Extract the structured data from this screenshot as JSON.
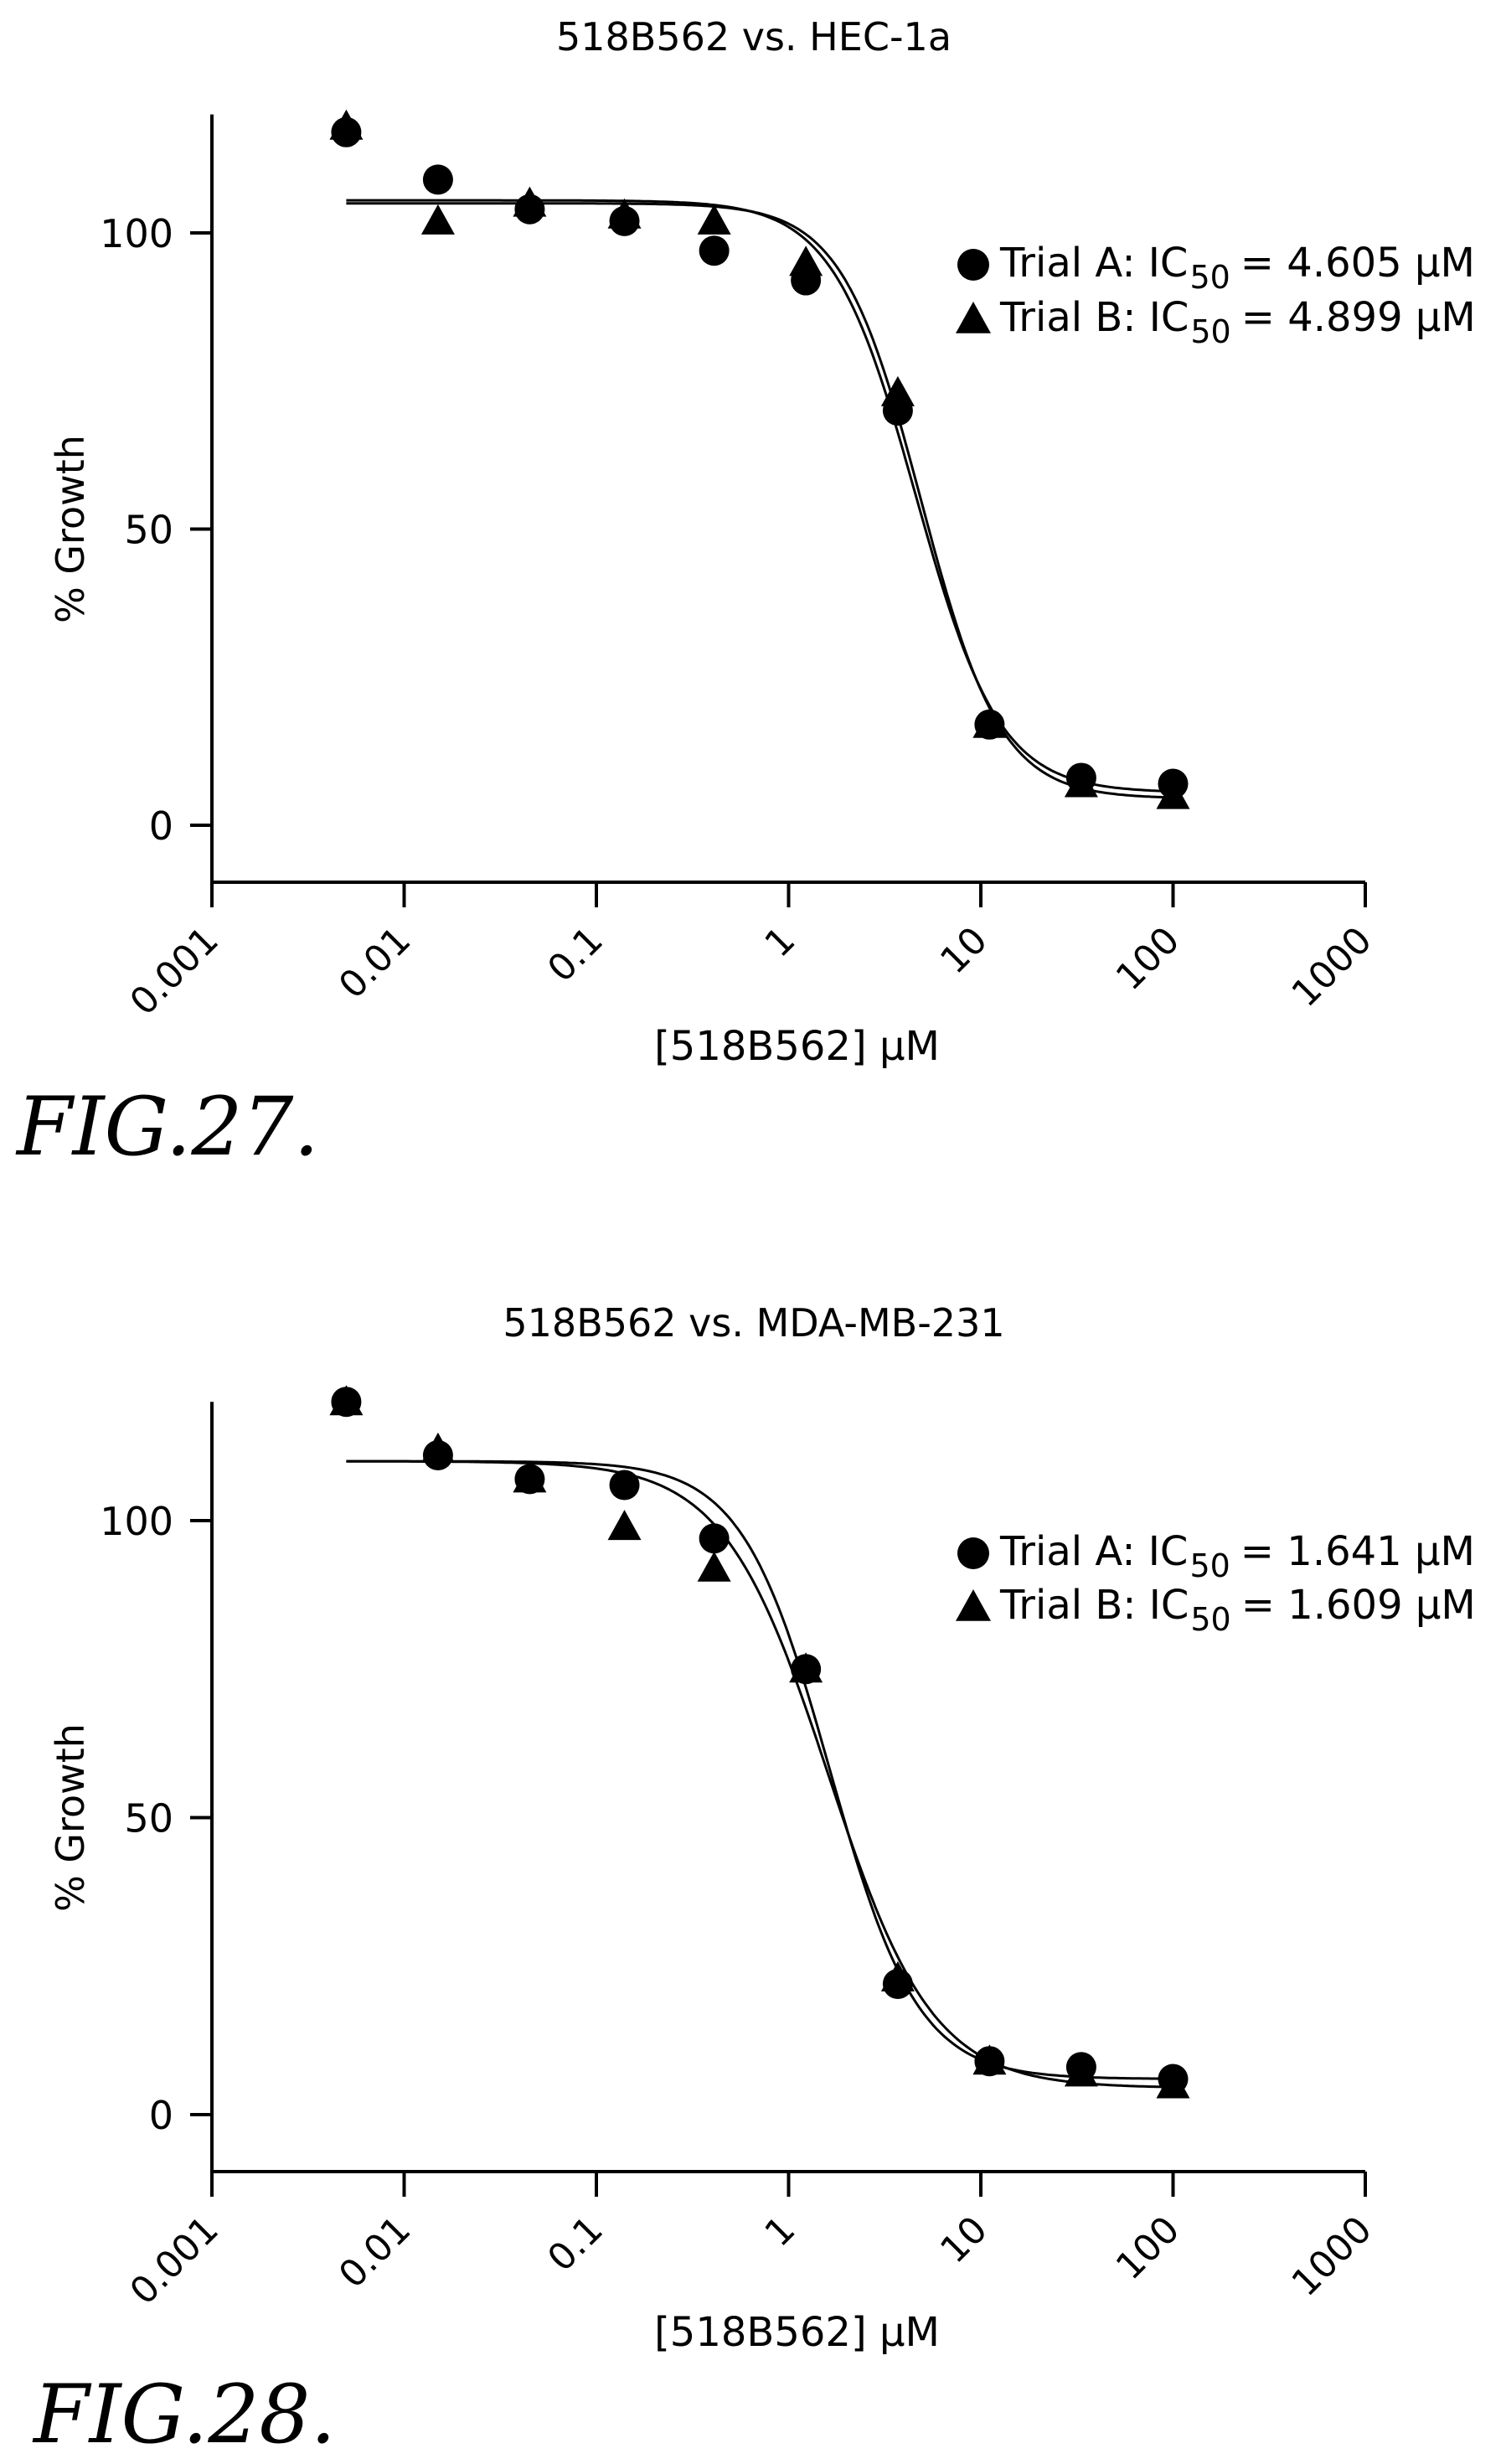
{
  "chart_data": [
    {
      "type": "scatter",
      "title": "518B562 vs. HEC-1a",
      "xlabel": "[518B562] μM",
      "ylabel": "% Growth",
      "x_scale": "log",
      "xlim": [
        0.001,
        1000
      ],
      "ylim": [
        -10,
        120
      ],
      "x_ticks": [
        "0.001",
        "0.01",
        "0.1",
        "1",
        "10",
        "100",
        "1000"
      ],
      "y_ticks": [
        "0",
        "50",
        "100"
      ],
      "legend_position": "right",
      "x": [
        0.005,
        0.015,
        0.045,
        0.14,
        0.41,
        1.23,
        3.7,
        11.1,
        33.3,
        100
      ],
      "series": [
        {
          "marker": "circle",
          "legend_label": "Trial  A:  IC",
          "ic50_sub": "50",
          "ic50_text": "=  4.605  μM",
          "values": [
            117,
            109,
            104,
            102,
            97,
            92,
            70,
            17,
            8,
            7
          ],
          "fit": {
            "top": 105.5,
            "bottom": 5.5,
            "ic50": 4.605,
            "hill": 2.0
          }
        },
        {
          "marker": "triangle",
          "legend_label": "Trial  B:  IC",
          "ic50_sub": "50",
          "ic50_text": "=  4.899  μM",
          "values": [
            118,
            102,
            105,
            103,
            102,
            95,
            73,
            17,
            7,
            5
          ],
          "fit": {
            "top": 105,
            "bottom": 4.5,
            "ic50": 4.899,
            "hill": 2.1
          }
        }
      ],
      "figure_label": "FIG.27."
    },
    {
      "type": "scatter",
      "title": "518B562 vs. MDA-MB-231",
      "xlabel": "[518B562] μM",
      "ylabel": "% Growth",
      "x_scale": "log",
      "xlim": [
        0.001,
        1000
      ],
      "ylim": [
        -10,
        120
      ],
      "x_ticks": [
        "0.001",
        "0.01",
        "0.1",
        "1",
        "10",
        "100",
        "1000"
      ],
      "y_ticks": [
        "0",
        "50",
        "100"
      ],
      "legend_position": "right",
      "x": [
        0.005,
        0.015,
        0.045,
        0.14,
        0.41,
        1.23,
        3.7,
        11.1,
        33.3,
        100
      ],
      "series": [
        {
          "marker": "circle",
          "legend_label": "Trial  A:  IC",
          "ic50_sub": "50",
          "ic50_text": "=  1.641  μM",
          "values": [
            120,
            111,
            107,
            106,
            97,
            75,
            22,
            9,
            8,
            6
          ],
          "fit": {
            "top": 110,
            "bottom": 6,
            "ic50": 1.641,
            "hill": 1.9
          }
        },
        {
          "marker": "triangle",
          "legend_label": "Trial  B:  IC",
          "ic50_sub": "50",
          "ic50_text": "=  1.609  μM",
          "values": [
            120,
            112,
            107,
            99,
            92,
            75,
            23,
            9,
            7,
            5
          ],
          "fit": {
            "top": 110,
            "bottom": 4.5,
            "ic50": 1.609,
            "hill": 1.6
          }
        }
      ],
      "figure_label": "FIG.28."
    }
  ]
}
